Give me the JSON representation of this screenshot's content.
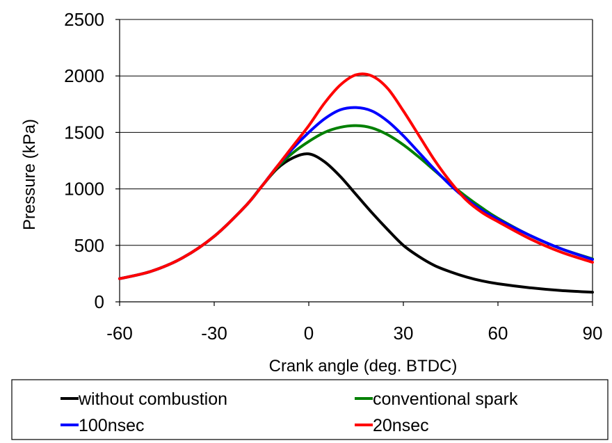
{
  "chart_data": {
    "type": "line",
    "title": "",
    "xlabel": "Crank angle (deg. BTDC)",
    "ylabel": "Pressure (kPa)",
    "xlim": [
      -60,
      90
    ],
    "ylim": [
      0,
      2500
    ],
    "xticks": [
      -60,
      -30,
      0,
      30,
      60,
      90
    ],
    "yticks": [
      0,
      500,
      1000,
      1500,
      2000,
      2500
    ],
    "grid": "horizontal",
    "legend_position": "bottom",
    "series": [
      {
        "name": "without combustion",
        "color": "#000000",
        "x": [
          -60,
          -50,
          -40,
          -30,
          -20,
          -15,
          -10,
          -5,
          0,
          5,
          10,
          15,
          20,
          25,
          30,
          35,
          40,
          45,
          50,
          55,
          60,
          70,
          80,
          90
        ],
        "y": [
          205,
          270,
          390,
          580,
          850,
          1020,
          1180,
          1275,
          1310,
          1240,
          1110,
          950,
          790,
          640,
          500,
          400,
          320,
          265,
          220,
          185,
          160,
          125,
          100,
          85
        ]
      },
      {
        "name": "conventional spark",
        "color": "#008000",
        "x": [
          -60,
          -50,
          -40,
          -30,
          -20,
          -15,
          -10,
          -5,
          0,
          5,
          10,
          15,
          20,
          25,
          30,
          35,
          40,
          45,
          50,
          55,
          60,
          70,
          80,
          90
        ],
        "y": [
          205,
          270,
          390,
          580,
          850,
          1020,
          1190,
          1320,
          1420,
          1500,
          1545,
          1560,
          1540,
          1480,
          1390,
          1280,
          1160,
          1040,
          930,
          830,
          740,
          590,
          470,
          380
        ]
      },
      {
        "name": "100nsec",
        "color": "#0000ff",
        "x": [
          -60,
          -50,
          -40,
          -30,
          -20,
          -15,
          -10,
          -5,
          0,
          5,
          10,
          15,
          20,
          25,
          30,
          35,
          40,
          45,
          50,
          55,
          60,
          70,
          80,
          90
        ],
        "y": [
          205,
          270,
          390,
          580,
          850,
          1020,
          1200,
          1360,
          1500,
          1620,
          1700,
          1720,
          1690,
          1600,
          1470,
          1320,
          1170,
          1030,
          910,
          810,
          730,
          590,
          470,
          375
        ]
      },
      {
        "name": "20nsec",
        "color": "#ff0000",
        "x": [
          -60,
          -50,
          -40,
          -30,
          -20,
          -15,
          -10,
          -5,
          0,
          5,
          10,
          15,
          20,
          25,
          30,
          35,
          40,
          45,
          50,
          55,
          60,
          70,
          80,
          90
        ],
        "y": [
          205,
          270,
          390,
          580,
          850,
          1020,
          1200,
          1380,
          1560,
          1760,
          1920,
          2010,
          2000,
          1890,
          1690,
          1470,
          1250,
          1060,
          900,
          790,
          710,
          560,
          440,
          350
        ]
      }
    ]
  }
}
